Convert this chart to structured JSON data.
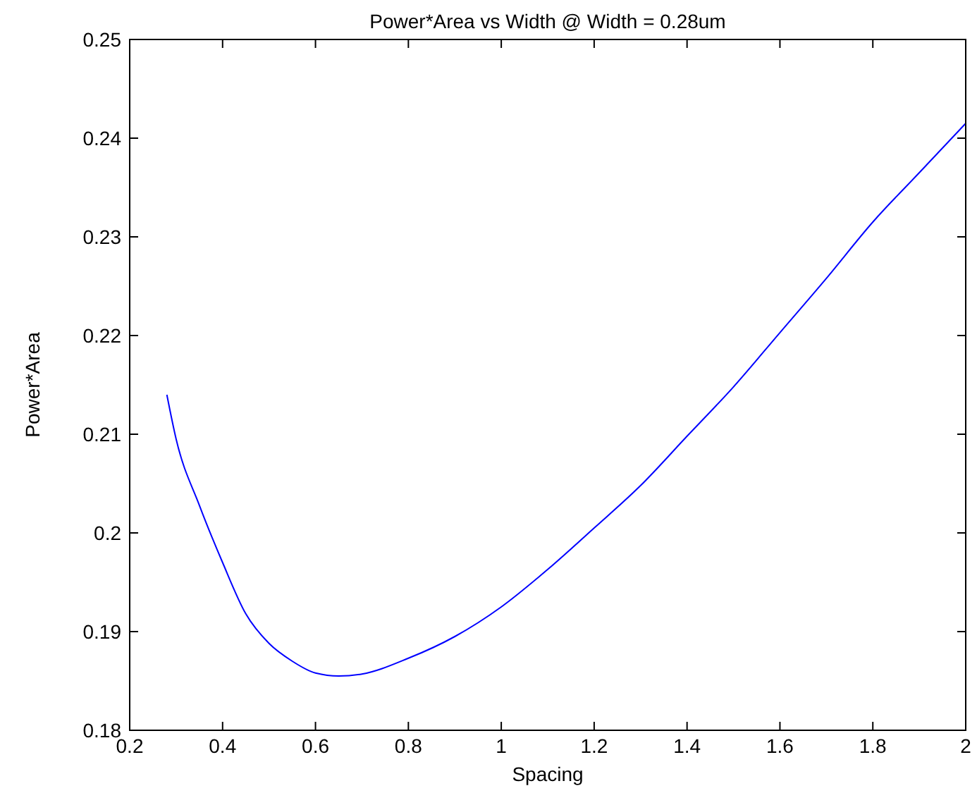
{
  "chart_data": {
    "type": "line",
    "title": "Power*Area vs Width @ Width = 0.28um",
    "xlabel": "Spacing",
    "ylabel": "Power*Area",
    "x": [
      0.28,
      0.3,
      0.35,
      0.4,
      0.45,
      0.5,
      0.55,
      0.6,
      0.65,
      0.7,
      0.8,
      0.9,
      1.0,
      1.1,
      1.2,
      1.3,
      1.4,
      1.5,
      1.6,
      1.7,
      1.8,
      1.9,
      2.0
    ],
    "series": [
      {
        "color": "#0000ff",
        "values": [
          0.214,
          0.2095,
          0.2028,
          0.197,
          0.1918,
          0.1888,
          0.187,
          0.1858,
          0.1855,
          0.1857,
          0.1873,
          0.1895,
          0.1925,
          0.1963,
          0.2005,
          0.2048,
          0.2098,
          0.2148,
          0.2203,
          0.2258,
          0.2315,
          0.2365,
          0.2415
        ]
      }
    ],
    "xlim": [
      0.2,
      2
    ],
    "xticks": [
      {
        "value": 0.2,
        "label": "0.2"
      },
      {
        "value": 0.4,
        "label": "0.4"
      },
      {
        "value": 0.6,
        "label": "0.6"
      },
      {
        "value": 0.8,
        "label": "0.8"
      },
      1,
      {
        "value": 1.2,
        "label": "1.2"
      },
      {
        "value": 1.4,
        "label": "1.4"
      },
      {
        "value": 1.6,
        "label": "1.6"
      },
      {
        "value": 1.8,
        "label": "1.8"
      },
      2
    ],
    "ylim": [
      0.18,
      0.25
    ],
    "yticks": [
      {
        "value": 0.18,
        "label": "0.18"
      },
      {
        "value": 0.19,
        "label": "0.19"
      },
      {
        "value": 0.2,
        "label": "0.2"
      },
      {
        "value": 0.21,
        "label": "0.21"
      },
      {
        "value": 0.22,
        "label": "0.22"
      },
      {
        "value": 0.23,
        "label": "0.23"
      },
      {
        "value": 0.24,
        "label": "0.24"
      },
      {
        "value": 0.25,
        "label": "0.25"
      }
    ],
    "grid": false,
    "marker": "none",
    "line_style": "solid"
  }
}
